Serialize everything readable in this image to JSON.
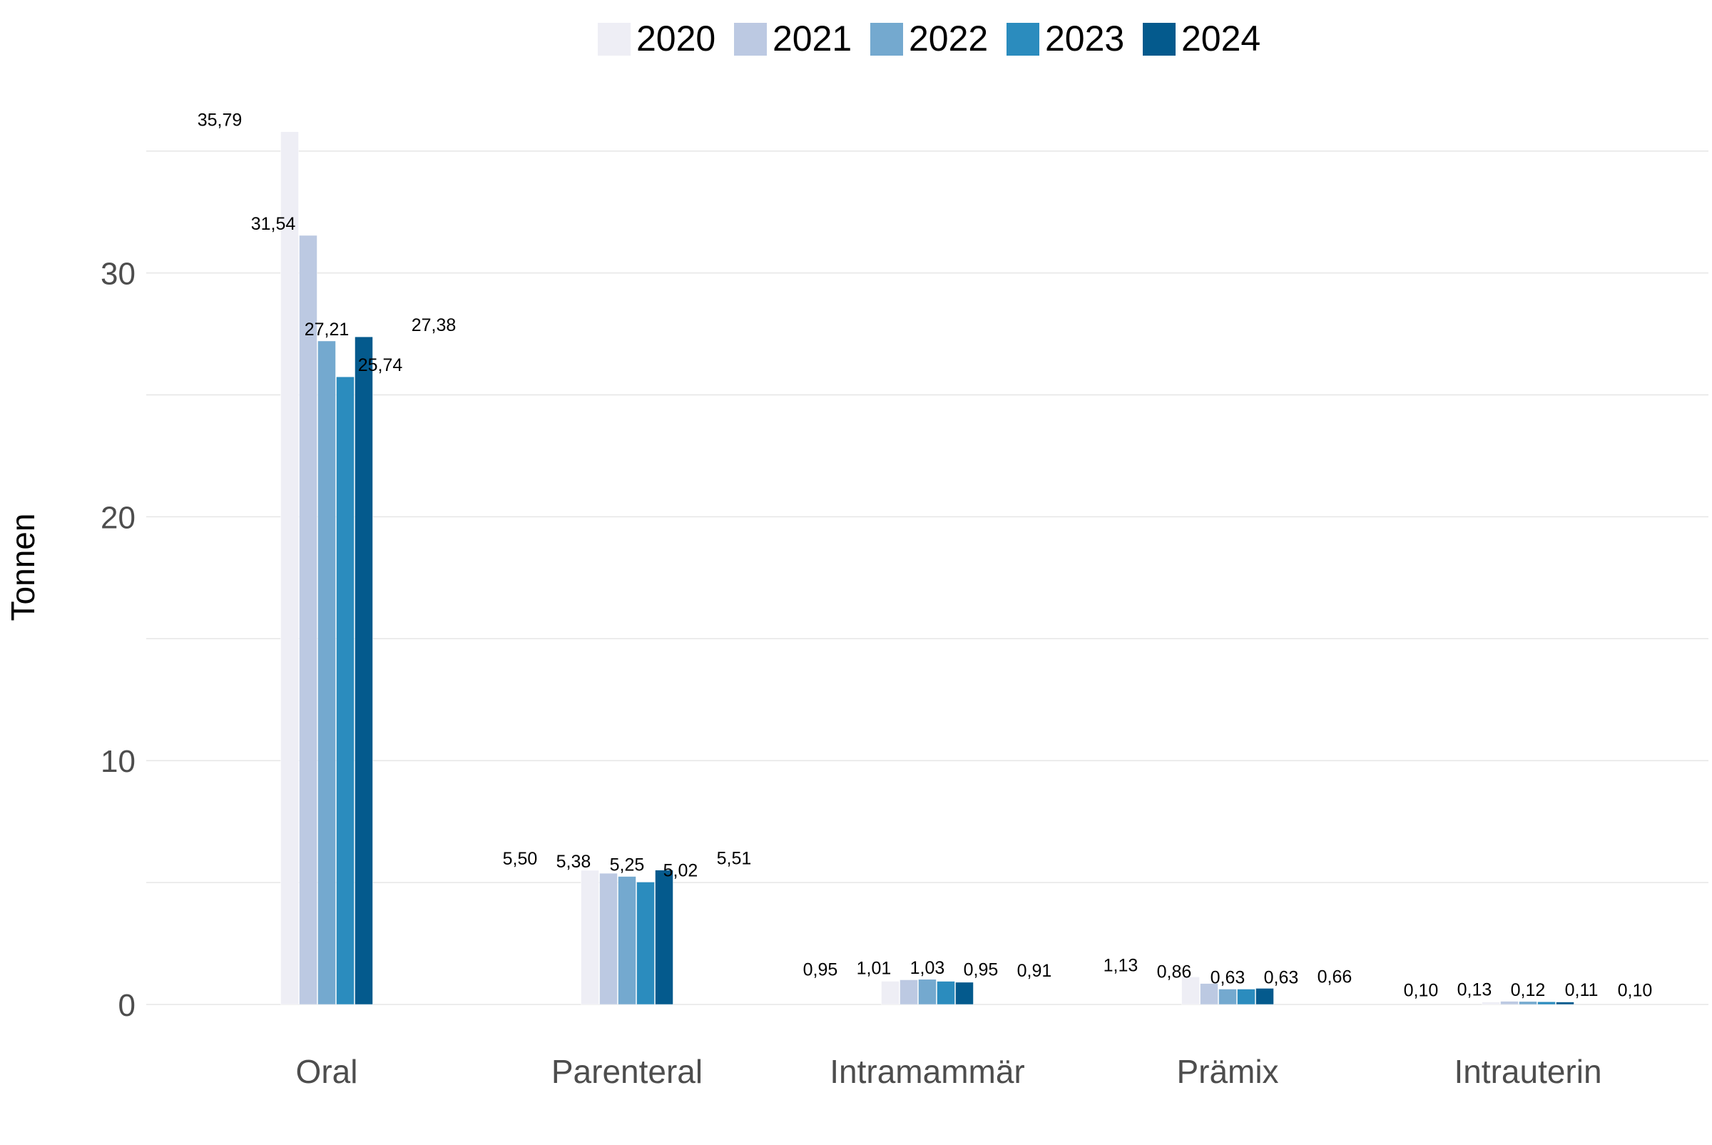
{
  "chart_data": {
    "type": "bar",
    "title": "",
    "xlabel": "",
    "ylabel": "Tonnen",
    "categories": [
      "Oral",
      "Parenteral",
      "Intramammär",
      "Prämix",
      "Intrauterin"
    ],
    "series": [
      {
        "name": "2020",
        "color": "#eeeef5",
        "values": [
          35.79,
          5.5,
          0.95,
          1.13,
          0.1
        ],
        "labels": [
          "35,79",
          "5,50",
          "0,95",
          "1,13",
          "0,10"
        ]
      },
      {
        "name": "2021",
        "color": "#bcc9e2",
        "values": [
          31.54,
          5.38,
          1.01,
          0.86,
          0.13
        ],
        "labels": [
          "31,54",
          "5,38",
          "1,01",
          "0,86",
          "0,13"
        ]
      },
      {
        "name": "2022",
        "color": "#74a9cf",
        "values": [
          27.21,
          5.25,
          1.03,
          0.63,
          0.12
        ],
        "labels": [
          "27,21",
          "5,25",
          "1,03",
          "0,63",
          "0,12"
        ]
      },
      {
        "name": "2023",
        "color": "#2b8cbe",
        "values": [
          25.74,
          5.02,
          0.95,
          0.63,
          0.11
        ],
        "labels": [
          "25,74",
          "5,02",
          "0,95",
          "0,63",
          "0,11"
        ]
      },
      {
        "name": "2024",
        "color": "#045a8d",
        "values": [
          27.38,
          5.51,
          0.91,
          0.66,
          0.1
        ],
        "labels": [
          "27,38",
          "5,51",
          "0,91",
          "0,66",
          "0,10"
        ]
      }
    ],
    "ylim": [
      0,
      35.79
    ],
    "yticks": [
      0,
      10,
      20,
      30
    ],
    "ytick_labels": [
      "0",
      "10",
      "20",
      "30"
    ],
    "grid": true,
    "legend_position": "top"
  }
}
